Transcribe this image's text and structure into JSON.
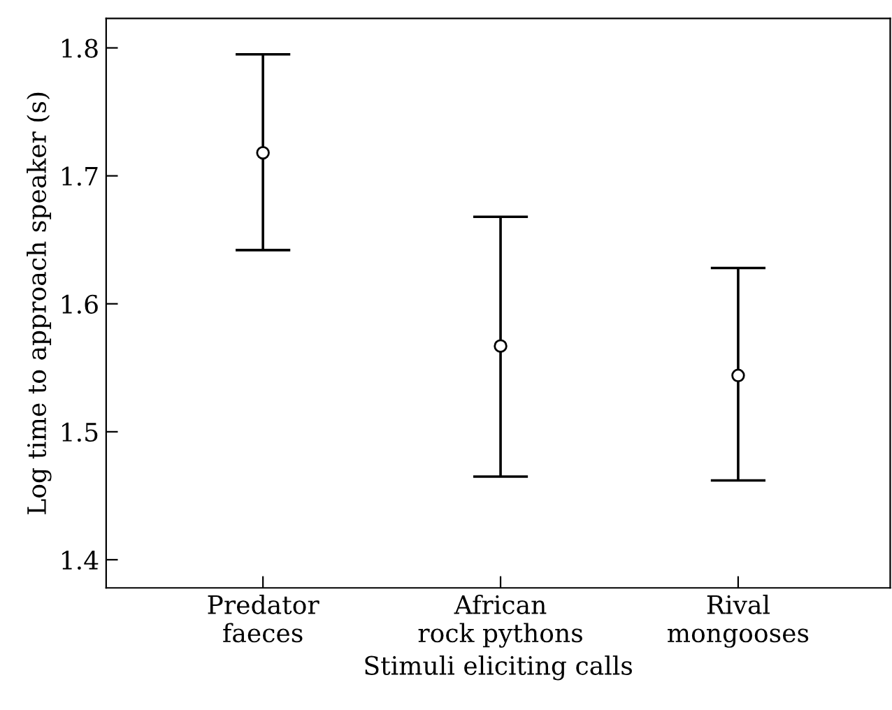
{
  "chart_data": {
    "type": "scatter",
    "xlabel": "Stimuli eliciting calls",
    "ylabel": "Log time to approach speaker (s)",
    "categories": [
      "Predator\nfaeces",
      "African\nrock pythons",
      "Rival\nmongooses"
    ],
    "values": [
      1.718,
      1.567,
      1.544
    ],
    "errors": [
      [
        1.642,
        1.795
      ],
      [
        1.465,
        1.668
      ],
      [
        1.462,
        1.628
      ]
    ],
    "color": "#000000",
    "marker": "circle",
    "ylim": [
      1.378,
      1.823
    ],
    "yticks": [
      1.4,
      1.5,
      1.6,
      1.7,
      1.8
    ],
    "grid": false,
    "legend": false
  }
}
